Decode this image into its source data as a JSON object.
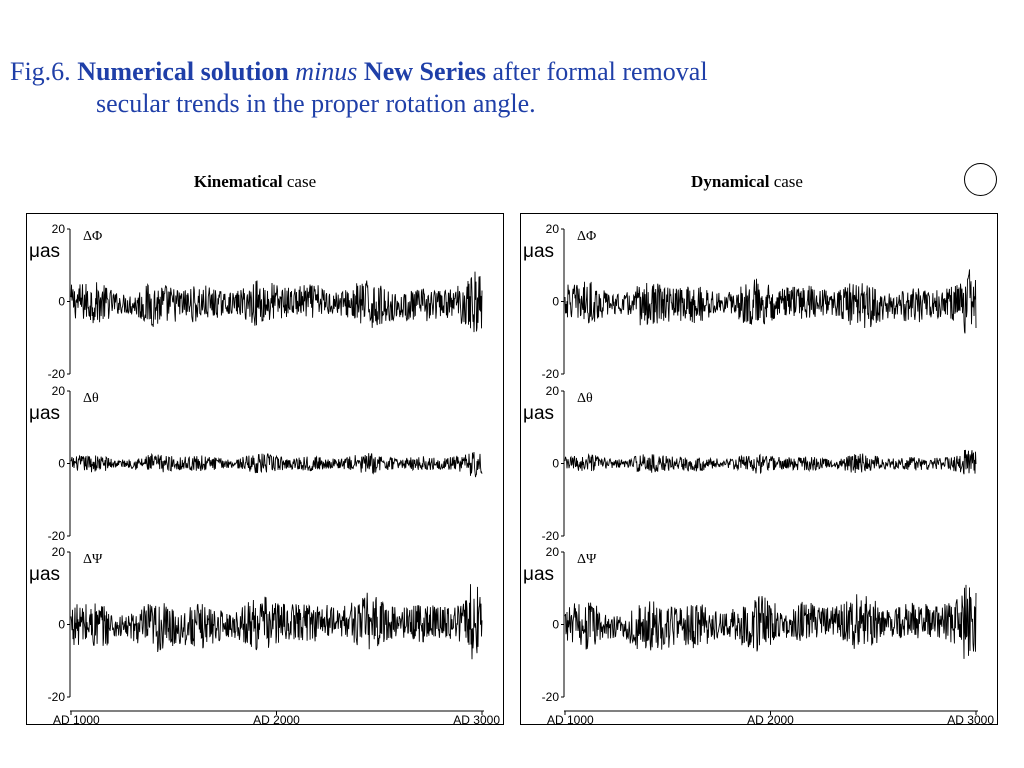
{
  "title": {
    "line1": {
      "prefix": "Fig.6. ",
      "bold1": "Numerical solution",
      "italic": " minus ",
      "bold2": "New Series",
      "suffix": " after formal removal"
    },
    "line2": "secular trends in the proper rotation angle."
  },
  "colors": {
    "title": "#1f3fa8",
    "trace": "#000000"
  },
  "chart_data": [
    {
      "type": "line",
      "panel_title_bold": "Kinematical",
      "panel_title_rest": " case",
      "x_ticks": [
        "AD 1000",
        "AD 2000",
        "AD 3000"
      ],
      "xlim": [
        1000,
        3000
      ],
      "subplots": [
        {
          "label": "ΔΦ",
          "ylabel": "μas",
          "ylim": [
            -20,
            20
          ],
          "yticks": [
            "20",
            "0",
            "-20"
          ],
          "amplitude": 6,
          "drift": [
            0,
            -1,
            -0.5,
            0,
            -1.5,
            0
          ]
        },
        {
          "label": "Δθ",
          "ylabel": "μas",
          "ylim": [
            -20,
            20
          ],
          "yticks": [
            "20",
            "0",
            "-20"
          ],
          "amplitude": 2.5,
          "drift": [
            0,
            0,
            0,
            0,
            0,
            0
          ]
        },
        {
          "label": "ΔΨ",
          "ylabel": "μas",
          "ylim": [
            -20,
            20
          ],
          "yticks": [
            "20",
            "0",
            "-20"
          ],
          "amplitude": 7,
          "drift": [
            0,
            -1,
            0,
            1,
            0.5,
            1
          ]
        }
      ]
    },
    {
      "type": "line",
      "panel_title_bold": "Dynamical",
      "panel_title_rest": " case",
      "x_ticks": [
        "AD 1000",
        "AD 2000",
        "AD 3000"
      ],
      "xlim": [
        1000,
        3000
      ],
      "subplots": [
        {
          "label": "ΔΦ",
          "ylabel": "μas",
          "ylim": [
            -20,
            20
          ],
          "yticks": [
            "20",
            "0",
            "-20"
          ],
          "amplitude": 6,
          "drift": [
            0,
            -1,
            -0.5,
            0,
            -1.5,
            0
          ]
        },
        {
          "label": "Δθ",
          "ylabel": "μas",
          "ylim": [
            -20,
            20
          ],
          "yticks": [
            "20",
            "0",
            "-20"
          ],
          "amplitude": 2.5,
          "drift": [
            0,
            0,
            0,
            0,
            0,
            0
          ]
        },
        {
          "label": "ΔΨ",
          "ylabel": "μas",
          "ylim": [
            -20,
            20
          ],
          "yticks": [
            "20",
            "0",
            "-20"
          ],
          "amplitude": 7,
          "drift": [
            0,
            -1,
            0,
            1,
            0.5,
            1
          ]
        }
      ]
    }
  ]
}
